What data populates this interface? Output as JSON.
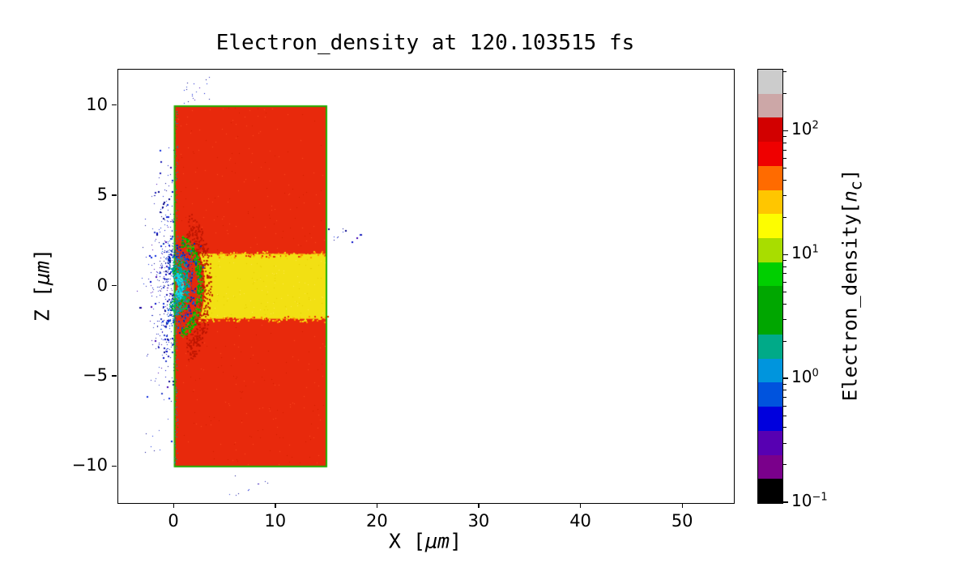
{
  "chart_data": {
    "type": "heatmap",
    "title": "Electron_density at 120.103515 fs",
    "xlabel": "X [μm]",
    "ylabel": "Z [μm]",
    "xlim": [
      -5.5,
      55.0
    ],
    "ylim": [
      -12,
      12
    ],
    "x_ticks": [
      0,
      10,
      20,
      30,
      40,
      50
    ],
    "y_ticks": [
      10,
      5,
      0,
      -5,
      -10
    ],
    "grid": false,
    "plot_background": "#ffffff",
    "colorbar": {
      "label": "Electron_density[n_c]",
      "scale": "log",
      "vmin": 0.1,
      "vmax": 316,
      "tick_exponents": [
        2,
        1,
        0,
        -1
      ],
      "colors_bottom_to_top": [
        "#000000",
        "#7a008b",
        "#5700b2",
        "#0000dd",
        "#0053dd",
        "#0095dd",
        "#00aa88",
        "#00a600",
        "#00a700",
        "#00cf00",
        "#a8dd00",
        "#fdfd00",
        "#ffc600",
        "#ff6b00",
        "#ef0000",
        "#d20000",
        "#cca7a7",
        "#cccccc"
      ]
    },
    "regions": [
      {
        "name": "target-slab",
        "x": [
          0,
          15
        ],
        "z": [
          -10,
          10
        ],
        "approx_density_nc": 100,
        "color": "#e8290c"
      },
      {
        "name": "channel-band",
        "x": [
          0,
          15
        ],
        "z": [
          -1.8,
          1.8
        ],
        "approx_density_nc": 25,
        "color": "#f2e013"
      },
      {
        "name": "target-outline",
        "approx_density_nc": 8,
        "color": "#1db000"
      },
      {
        "name": "interaction-blob",
        "center_x": 0.5,
        "center_z": 0,
        "radius_x": 2.3,
        "radius_z": 2.7,
        "approx_density_nc": 1.5,
        "colors": [
          "#00c8e6",
          "#00b400",
          "#0046dc"
        ]
      },
      {
        "name": "blowoff-scatter",
        "x": [
          -4.3,
          0
        ],
        "z": [
          -9,
          6
        ],
        "approx_density_nc": 0.5,
        "color": "#0a14c8"
      },
      {
        "name": "stray-scatter-top",
        "x": [
          0.2,
          3.8
        ],
        "z": [
          10,
          11.7
        ],
        "approx_density_nc": 0.3
      },
      {
        "name": "stray-scatter-right",
        "x": [
          15.1,
          18.6
        ],
        "z": [
          2.4,
          3.5
        ],
        "approx_density_nc": 0.3
      },
      {
        "name": "stray-scatter-bottom",
        "x": [
          4,
          9.5
        ],
        "z": [
          -11.8,
          -10.1
        ],
        "approx_density_nc": 0.3
      }
    ]
  }
}
